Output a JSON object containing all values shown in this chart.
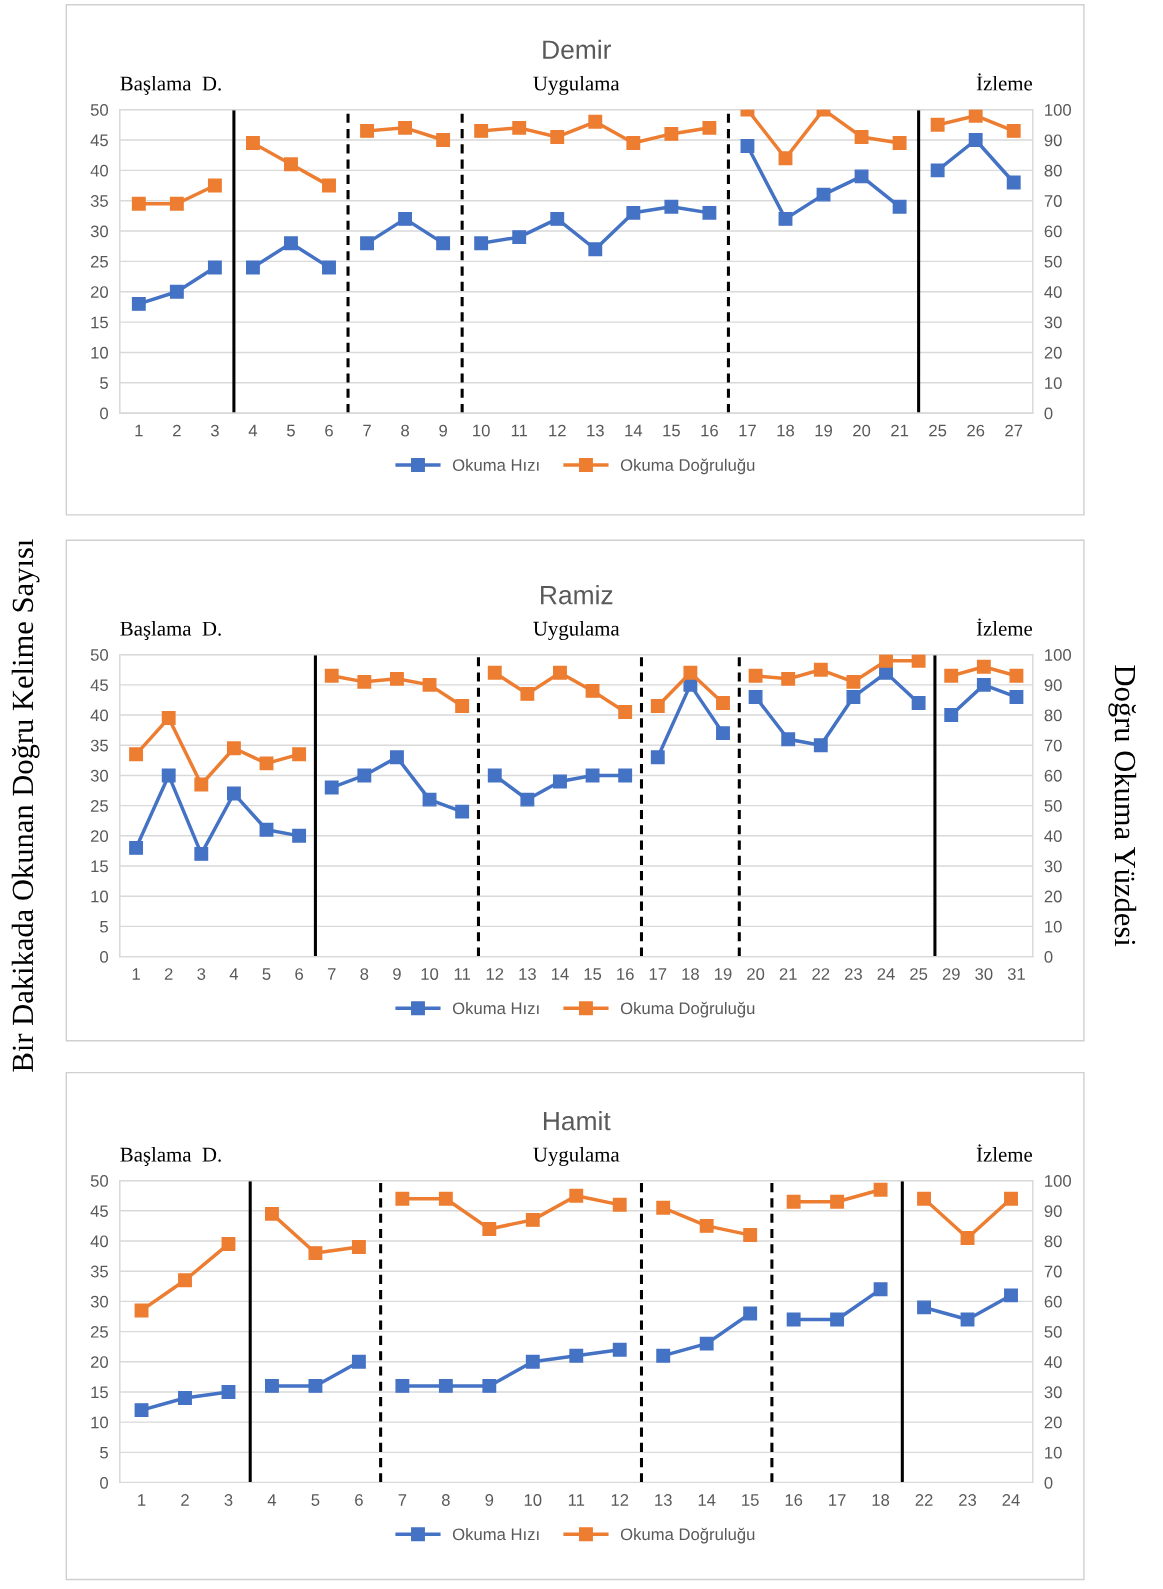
{
  "chart_data": [
    {
      "type": "line",
      "title": "Demir",
      "categories": [
        "1",
        "2",
        "3",
        "4",
        "5",
        "6",
        "7",
        "8",
        "9",
        "10",
        "11",
        "12",
        "13",
        "14",
        "15",
        "16",
        "17",
        "18",
        "19",
        "20",
        "21",
        "25",
        "26",
        "27"
      ],
      "series": [
        {
          "name": "Okuma Hızı",
          "color": "#4472c4",
          "x": [
            "1",
            "2",
            "3"
          ],
          "values": [
            18,
            20,
            24
          ]
        },
        {
          "color": "#4472c4",
          "x": [
            "4",
            "5",
            "6"
          ],
          "values": [
            24,
            28,
            24
          ]
        },
        {
          "color": "#4472c4",
          "x": [
            "7",
            "8",
            "9"
          ],
          "values": [
            28,
            32,
            28
          ]
        },
        {
          "color": "#4472c4",
          "x": [
            "10",
            "11",
            "12",
            "13",
            "14",
            "15",
            "16"
          ],
          "values": [
            28,
            29,
            32,
            27,
            33,
            34,
            33
          ]
        },
        {
          "color": "#4472c4",
          "x": [
            "17",
            "18",
            "19",
            "20",
            "21"
          ],
          "values": [
            44,
            32,
            36,
            39,
            34
          ]
        },
        {
          "color": "#4472c4",
          "x": [
            "25",
            "26",
            "27"
          ],
          "values": [
            40,
            45,
            38
          ]
        },
        {
          "name": "Okuma Doğruluğu",
          "color": "#ed7d31",
          "axis": "y2",
          "x": [
            "1",
            "2",
            "3"
          ],
          "values": [
            69,
            69,
            75
          ]
        },
        {
          "color": "#ed7d31",
          "axis": "y2",
          "x": [
            "4",
            "5",
            "6"
          ],
          "values": [
            89,
            82,
            75
          ]
        },
        {
          "color": "#ed7d31",
          "axis": "y2",
          "x": [
            "7",
            "8",
            "9"
          ],
          "values": [
            93,
            94,
            90
          ]
        },
        {
          "color": "#ed7d31",
          "axis": "y2",
          "x": [
            "10",
            "11",
            "12",
            "13",
            "14",
            "15",
            "16"
          ],
          "values": [
            93,
            94,
            91,
            96,
            89,
            92,
            94
          ]
        },
        {
          "color": "#ed7d31",
          "axis": "y2",
          "x": [
            "17",
            "18",
            "19",
            "20",
            "21"
          ],
          "values": [
            100,
            84,
            100,
            91,
            89
          ]
        },
        {
          "color": "#ed7d31",
          "axis": "y2",
          "x": [
            "25",
            "26",
            "27"
          ],
          "values": [
            95,
            98,
            93
          ]
        }
      ],
      "ylim": [
        0,
        50
      ],
      "yticks": [
        0,
        5,
        10,
        15,
        20,
        25,
        30,
        35,
        40,
        45,
        50
      ],
      "y2lim": [
        0,
        100
      ],
      "y2ticks": [
        0,
        10,
        20,
        30,
        40,
        50,
        60,
        70,
        80,
        90,
        100
      ],
      "annotations": [
        "Başlama  D.",
        "Uygulama",
        "İzleme"
      ],
      "marker": "square",
      "line_style": "solid",
      "grid": "y",
      "legend": "bottom"
    },
    {
      "type": "line",
      "title": "Ramiz",
      "categories": [
        "1",
        "2",
        "3",
        "4",
        "5",
        "6",
        "7",
        "8",
        "9",
        "10",
        "11",
        "12",
        "13",
        "14",
        "15",
        "16",
        "17",
        "18",
        "19",
        "20",
        "21",
        "22",
        "23",
        "24",
        "25",
        "29",
        "30",
        "31"
      ],
      "series": [
        {
          "name": "Okuma Hızı",
          "color": "#4472c4",
          "x": [
            "1",
            "2",
            "3",
            "4",
            "5",
            "6"
          ],
          "values": [
            18,
            30,
            17,
            27,
            21,
            20
          ]
        },
        {
          "color": "#4472c4",
          "x": [
            "7",
            "8",
            "9",
            "10",
            "11"
          ],
          "values": [
            28,
            30,
            33,
            26,
            24
          ]
        },
        {
          "color": "#4472c4",
          "x": [
            "12",
            "13",
            "14",
            "15",
            "16"
          ],
          "values": [
            30,
            26,
            29,
            30,
            30
          ]
        },
        {
          "color": "#4472c4",
          "x": [
            "17",
            "18",
            "19"
          ],
          "values": [
            33,
            45,
            37
          ]
        },
        {
          "color": "#4472c4",
          "x": [
            "20",
            "21",
            "22",
            "23",
            "24",
            "25"
          ],
          "values": [
            43,
            36,
            35,
            43,
            47,
            42
          ]
        },
        {
          "color": "#4472c4",
          "x": [
            "29",
            "30",
            "31"
          ],
          "values": [
            40,
            45,
            43
          ]
        },
        {
          "name": "Okuma Doğruluğu",
          "color": "#ed7d31",
          "axis": "y2",
          "x": [
            "1",
            "2",
            "3",
            "4",
            "5",
            "6"
          ],
          "values": [
            67,
            79,
            57,
            69,
            64,
            67
          ]
        },
        {
          "color": "#ed7d31",
          "axis": "y2",
          "x": [
            "7",
            "8",
            "9",
            "10",
            "11"
          ],
          "values": [
            93,
            91,
            92,
            90,
            83
          ]
        },
        {
          "color": "#ed7d31",
          "axis": "y2",
          "x": [
            "12",
            "13",
            "14",
            "15",
            "16"
          ],
          "values": [
            94,
            87,
            94,
            88,
            81
          ]
        },
        {
          "color": "#ed7d31",
          "axis": "y2",
          "x": [
            "17",
            "18",
            "19"
          ],
          "values": [
            83,
            94,
            84
          ]
        },
        {
          "color": "#ed7d31",
          "axis": "y2",
          "x": [
            "20",
            "21",
            "22",
            "23",
            "24",
            "25"
          ],
          "values": [
            93,
            92,
            95,
            91,
            98,
            98
          ]
        },
        {
          "color": "#ed7d31",
          "axis": "y2",
          "x": [
            "29",
            "30",
            "31"
          ],
          "values": [
            93,
            96,
            93
          ]
        }
      ],
      "ylim": [
        0,
        50
      ],
      "yticks": [
        0,
        5,
        10,
        15,
        20,
        25,
        30,
        35,
        40,
        45,
        50
      ],
      "y2lim": [
        0,
        100
      ],
      "y2ticks": [
        0,
        10,
        20,
        30,
        40,
        50,
        60,
        70,
        80,
        90,
        100
      ],
      "ylabel": "Bir Dakikada Okunan Doğru Kelime Sayısı",
      "y2label": "Doğru Okuma Yüzdesi",
      "annotations": [
        "Başlama  D.",
        "Uygulama",
        "İzleme"
      ],
      "marker": "square",
      "line_style": "solid",
      "grid": "y",
      "legend": "bottom"
    },
    {
      "type": "line",
      "title": "Hamit",
      "categories": [
        "1",
        "2",
        "3",
        "4",
        "5",
        "6",
        "7",
        "8",
        "9",
        "10",
        "11",
        "12",
        "13",
        "14",
        "15",
        "16",
        "17",
        "18",
        "22",
        "23",
        "24"
      ],
      "series": [
        {
          "name": "Okuma Hızı",
          "color": "#4472c4",
          "x": [
            "1",
            "2",
            "3"
          ],
          "values": [
            12,
            14,
            15
          ]
        },
        {
          "color": "#4472c4",
          "x": [
            "4",
            "5",
            "6"
          ],
          "values": [
            16,
            16,
            20
          ]
        },
        {
          "color": "#4472c4",
          "x": [
            "7",
            "8",
            "9",
            "10",
            "11",
            "12"
          ],
          "values": [
            16,
            16,
            16,
            20,
            21,
            22
          ]
        },
        {
          "color": "#4472c4",
          "x": [
            "13",
            "14",
            "15"
          ],
          "values": [
            21,
            23,
            28
          ]
        },
        {
          "color": "#4472c4",
          "x": [
            "16",
            "17",
            "18"
          ],
          "values": [
            27,
            27,
            32
          ]
        },
        {
          "color": "#4472c4",
          "x": [
            "22",
            "23",
            "24"
          ],
          "values": [
            29,
            27,
            31
          ]
        },
        {
          "name": "Okuma Doğruluğu",
          "color": "#ed7d31",
          "axis": "y2",
          "x": [
            "1",
            "2",
            "3"
          ],
          "values": [
            57,
            67,
            79
          ]
        },
        {
          "color": "#ed7d31",
          "axis": "y2",
          "x": [
            "4",
            "5",
            "6"
          ],
          "values": [
            89,
            76,
            78
          ]
        },
        {
          "color": "#ed7d31",
          "axis": "y2",
          "x": [
            "7",
            "8",
            "9",
            "10",
            "11",
            "12"
          ],
          "values": [
            94,
            94,
            84,
            87,
            95,
            92
          ]
        },
        {
          "color": "#ed7d31",
          "axis": "y2",
          "x": [
            "13",
            "14",
            "15"
          ],
          "values": [
            91,
            85,
            82
          ]
        },
        {
          "color": "#ed7d31",
          "axis": "y2",
          "x": [
            "16",
            "17",
            "18"
          ],
          "values": [
            93,
            93,
            97
          ]
        },
        {
          "color": "#ed7d31",
          "axis": "y2",
          "x": [
            "22",
            "23",
            "24"
          ],
          "values": [
            94,
            81,
            94
          ]
        }
      ],
      "ylim": [
        0,
        50
      ],
      "yticks": [
        0,
        5,
        10,
        15,
        20,
        25,
        30,
        35,
        40,
        45,
        50
      ],
      "y2lim": [
        0,
        100
      ],
      "y2ticks": [
        0,
        10,
        20,
        30,
        40,
        50,
        60,
        70,
        80,
        90,
        100
      ],
      "annotations": [
        "Başlama  D.",
        "Uygulama",
        "İzleme"
      ],
      "marker": "square",
      "line_style": "solid",
      "grid": "y",
      "legend": "bottom"
    }
  ]
}
